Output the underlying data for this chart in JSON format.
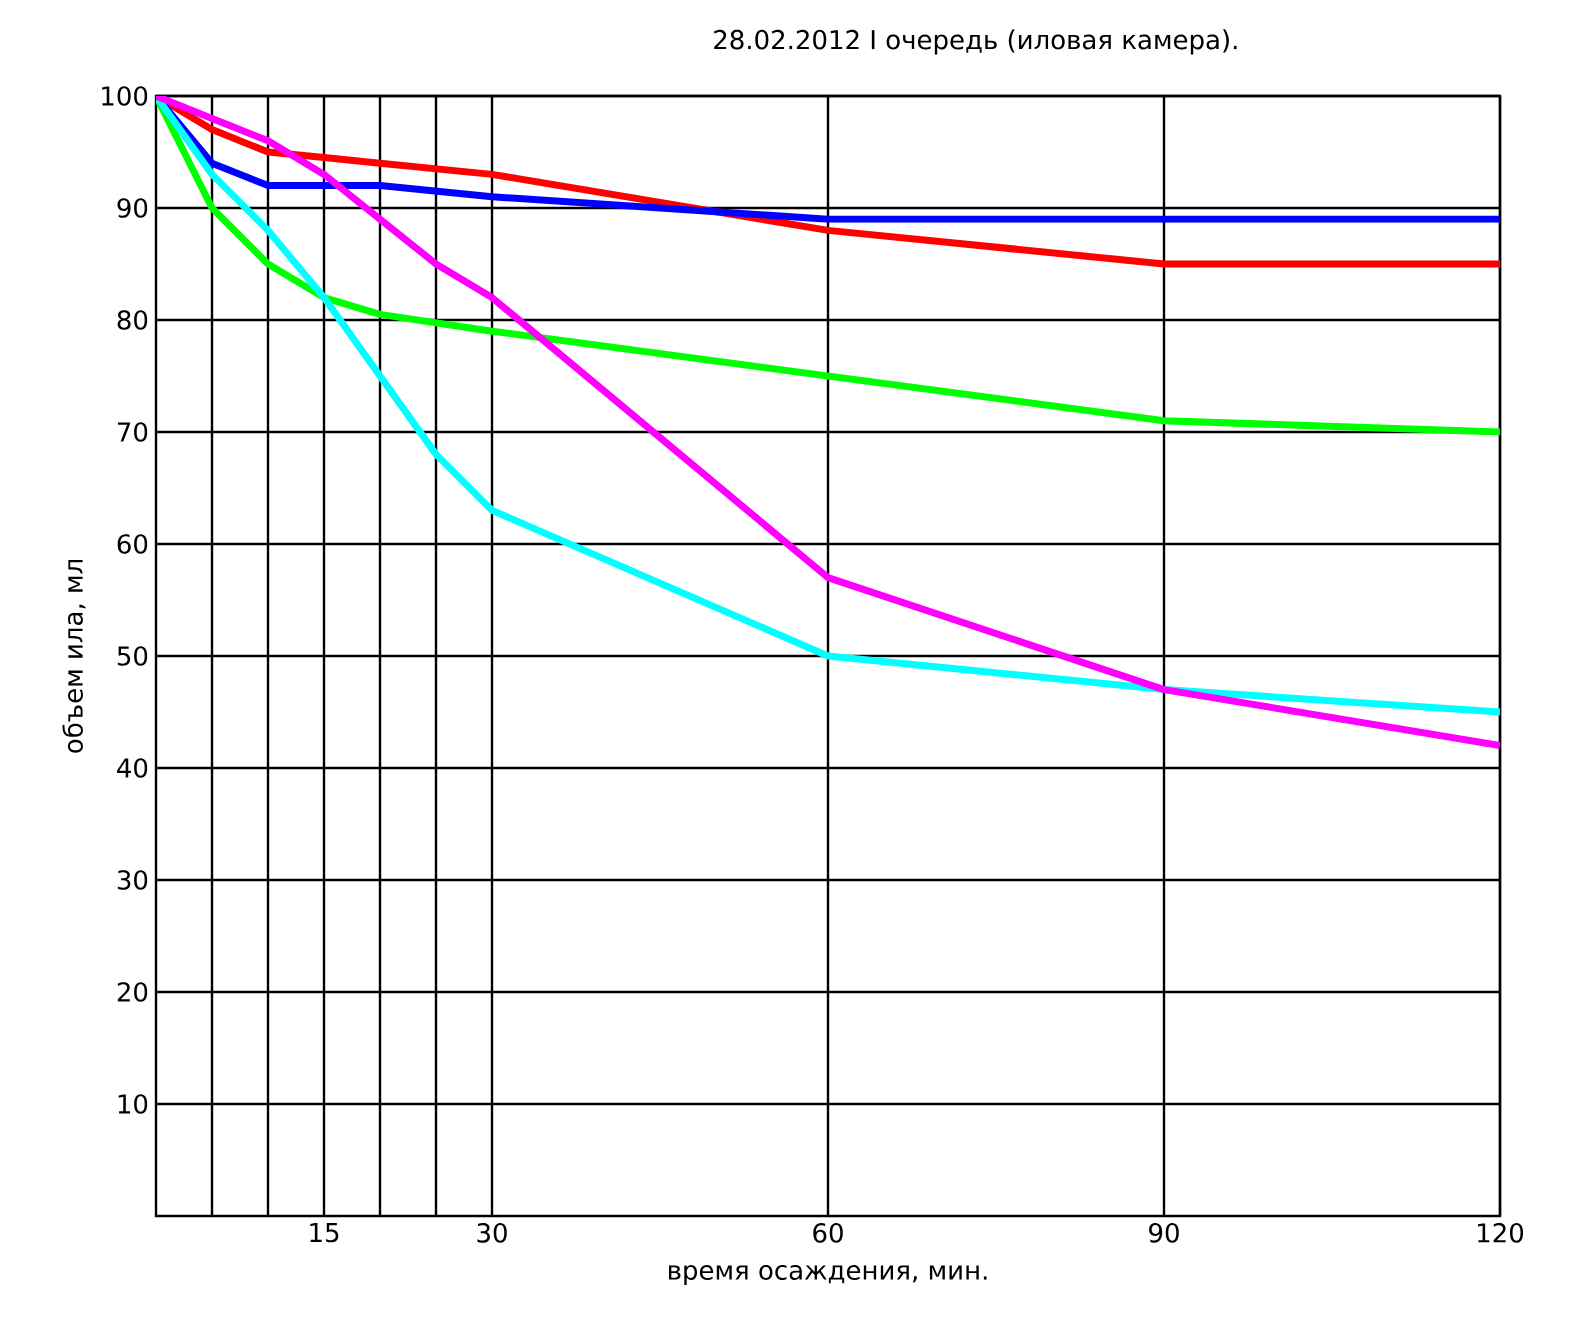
{
  "chart_data": {
    "type": "line",
    "title": "28.02.2012 I очередь (иловая камера).",
    "xlabel": "время осаждения, мин.",
    "ylabel": "объем ила, мл",
    "xlim": [
      0,
      120
    ],
    "ylim": [
      0,
      100
    ],
    "xticks": [
      {
        "value": 5,
        "label": null
      },
      {
        "value": 10,
        "label": null
      },
      15,
      {
        "value": 20,
        "label": null
      },
      {
        "value": 25,
        "label": null
      },
      30,
      60,
      90,
      120
    ],
    "yticks": [
      10,
      20,
      30,
      40,
      50,
      60,
      70,
      80,
      90,
      100
    ],
    "grid": true,
    "marker": "none",
    "line_style": "solid",
    "series": [
      {
        "color": "#ff0000",
        "x": [
          0,
          5,
          10,
          15,
          20,
          30,
          60,
          90,
          120
        ],
        "values": [
          100,
          97,
          95,
          94.5,
          94,
          93,
          88,
          85,
          85
        ]
      },
      {
        "color": "#0000ff",
        "x": [
          0,
          5,
          10,
          15,
          20,
          30,
          60,
          90,
          120
        ],
        "values": [
          100,
          94,
          92,
          92,
          92,
          91,
          89,
          89,
          89
        ]
      },
      {
        "color": "#00ff00",
        "x": [
          0,
          5,
          10,
          15,
          20,
          30,
          60,
          90,
          120
        ],
        "values": [
          100,
          90,
          85,
          82,
          80.5,
          79,
          75,
          71,
          70
        ]
      },
      {
        "color": "#00ffff",
        "x": [
          0,
          5,
          10,
          15,
          20,
          25,
          30,
          60,
          90,
          120
        ],
        "values": [
          100,
          93,
          88,
          82,
          75,
          68,
          63,
          50,
          47,
          45
        ]
      },
      {
        "color": "#ff00ff",
        "x": [
          0,
          5,
          10,
          15,
          20,
          25,
          30,
          60,
          90,
          120
        ],
        "values": [
          100,
          98,
          96,
          93,
          89,
          85,
          82,
          57,
          47,
          42
        ]
      }
    ]
  }
}
